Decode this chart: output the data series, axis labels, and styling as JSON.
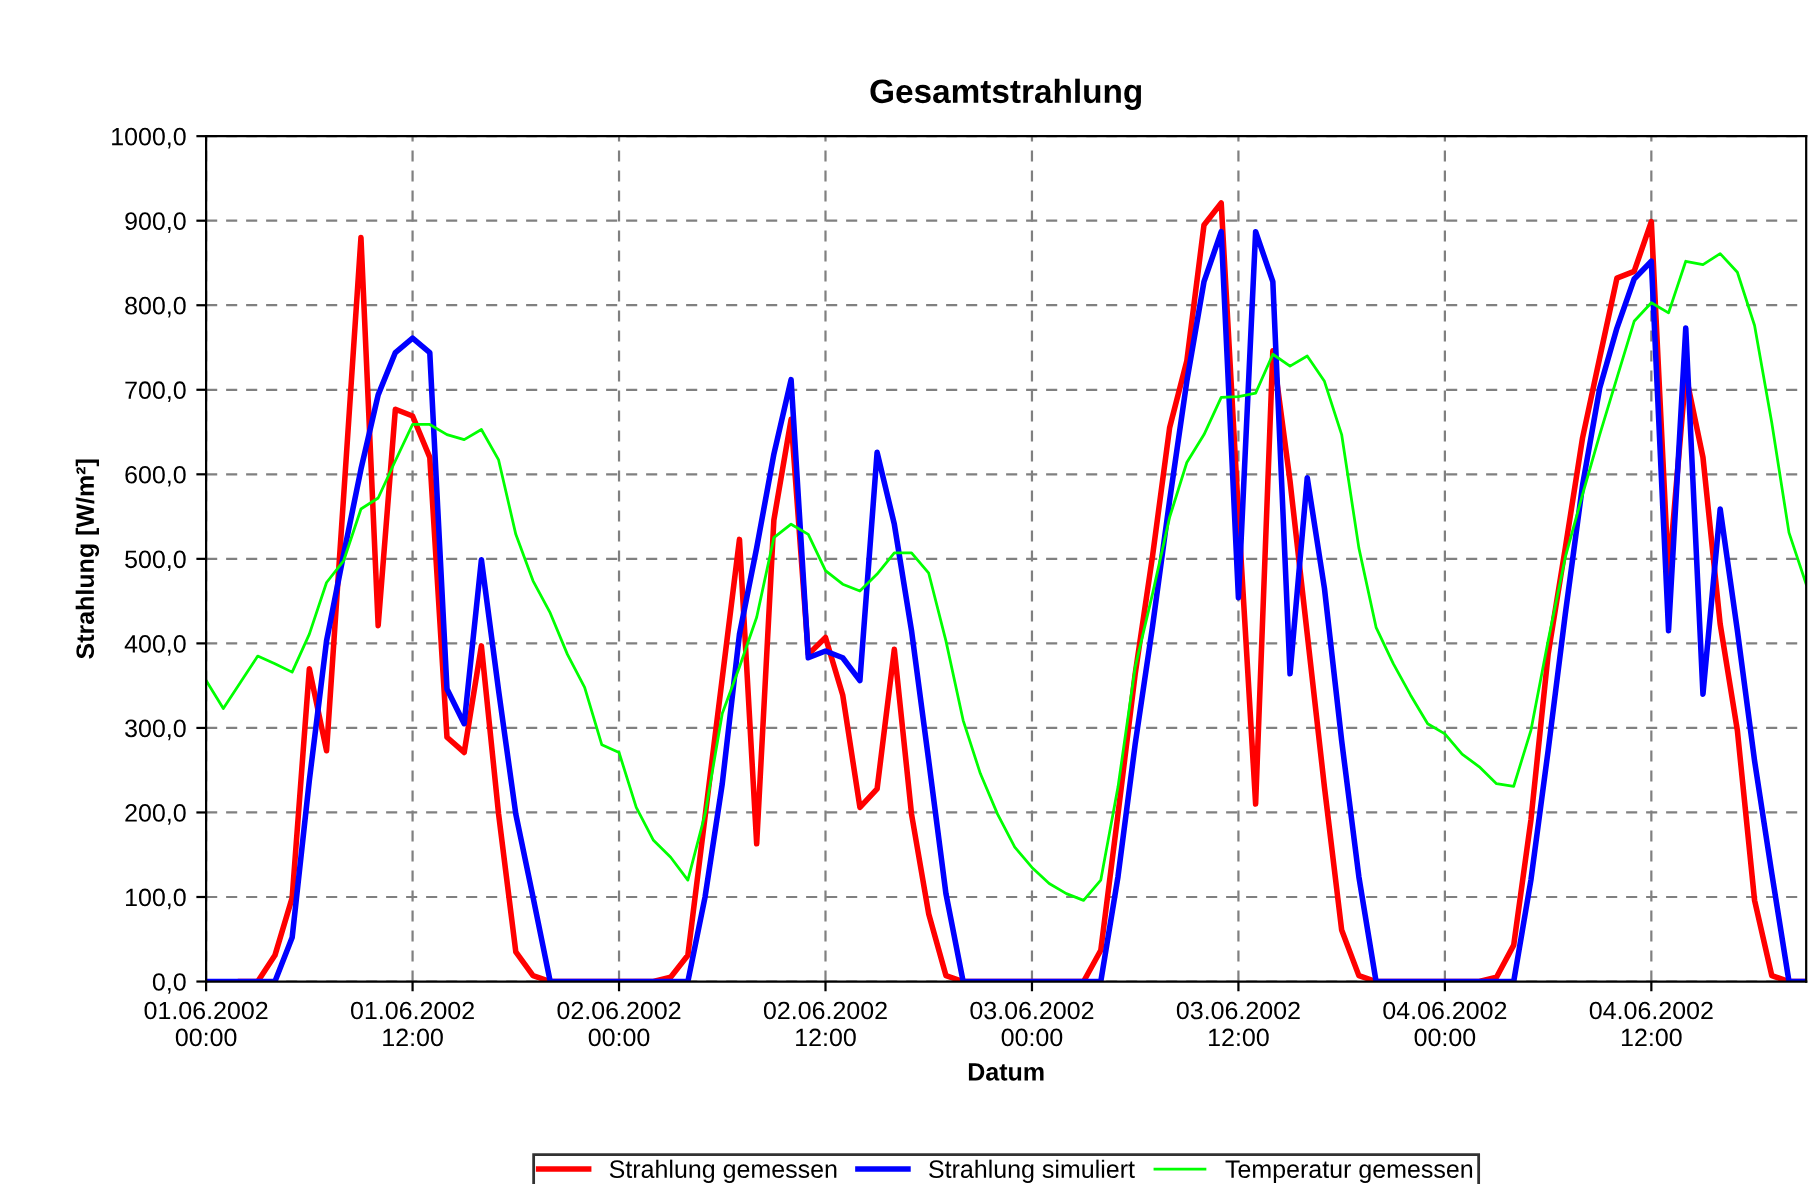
{
  "chart_data": {
    "type": "line",
    "title": "Gesamtstrahlung",
    "xlabel": "Datum",
    "ylabel": "Strahlung [W/m²]",
    "x": [
      "2002-06-01T00:00",
      "2002-06-01T01:00",
      "2002-06-01T02:00",
      "2002-06-01T03:00",
      "2002-06-01T04:00",
      "2002-06-01T05:00",
      "2002-06-01T06:00",
      "2002-06-01T07:00",
      "2002-06-01T08:00",
      "2002-06-01T09:00",
      "2002-06-01T10:00",
      "2002-06-01T11:00",
      "2002-06-01T12:00",
      "2002-06-01T13:00",
      "2002-06-01T14:00",
      "2002-06-01T15:00",
      "2002-06-01T16:00",
      "2002-06-01T17:00",
      "2002-06-01T18:00",
      "2002-06-01T19:00",
      "2002-06-01T20:00",
      "2002-06-01T21:00",
      "2002-06-01T22:00",
      "2002-06-01T23:00",
      "2002-06-02T00:00",
      "2002-06-02T01:00",
      "2002-06-02T02:00",
      "2002-06-02T03:00",
      "2002-06-02T04:00",
      "2002-06-02T05:00",
      "2002-06-02T06:00",
      "2002-06-02T07:00",
      "2002-06-02T08:00",
      "2002-06-02T09:00",
      "2002-06-02T10:00",
      "2002-06-02T11:00",
      "2002-06-02T12:00",
      "2002-06-02T13:00",
      "2002-06-02T14:00",
      "2002-06-02T15:00",
      "2002-06-02T16:00",
      "2002-06-02T17:00",
      "2002-06-02T18:00",
      "2002-06-02T19:00",
      "2002-06-02T20:00",
      "2002-06-02T21:00",
      "2002-06-02T22:00",
      "2002-06-02T23:00",
      "2002-06-03T00:00",
      "2002-06-03T01:00",
      "2002-06-03T02:00",
      "2002-06-03T03:00",
      "2002-06-03T04:00",
      "2002-06-03T05:00",
      "2002-06-03T06:00",
      "2002-06-03T07:00",
      "2002-06-03T08:00",
      "2002-06-03T09:00",
      "2002-06-03T10:00",
      "2002-06-03T11:00",
      "2002-06-03T12:00",
      "2002-06-03T13:00",
      "2002-06-03T14:00",
      "2002-06-03T15:00",
      "2002-06-03T16:00",
      "2002-06-03T17:00",
      "2002-06-03T18:00",
      "2002-06-03T19:00",
      "2002-06-03T20:00",
      "2002-06-03T21:00",
      "2002-06-03T22:00",
      "2002-06-03T23:00",
      "2002-06-04T00:00",
      "2002-06-04T01:00",
      "2002-06-04T02:00",
      "2002-06-04T03:00",
      "2002-06-04T04:00",
      "2002-06-04T05:00",
      "2002-06-04T06:00",
      "2002-06-04T07:00",
      "2002-06-04T08:00",
      "2002-06-04T09:00",
      "2002-06-04T10:00",
      "2002-06-04T11:00",
      "2002-06-04T12:00",
      "2002-06-04T13:00",
      "2002-06-04T14:00",
      "2002-06-04T15:00",
      "2002-06-04T16:00",
      "2002-06-04T17:00",
      "2002-06-04T18:00",
      "2002-06-04T19:00",
      "2002-06-04T20:00",
      "2002-06-04T21:00"
    ],
    "series": [
      {
        "name": "Strahlung gemessen",
        "color": "#ff0000",
        "values": [
          null,
          null,
          0,
          0,
          31,
          99,
          370,
          273,
          576,
          880,
          421,
          677,
          669,
          620,
          289,
          271,
          397,
          198,
          35,
          7,
          0,
          0,
          0,
          0,
          0,
          0,
          0,
          5,
          31,
          195,
          359,
          523,
          163,
          546,
          665,
          387,
          407,
          339,
          206,
          228,
          393,
          198,
          80,
          7,
          0,
          0,
          0,
          0,
          0,
          0,
          0,
          0,
          37,
          198,
          364,
          502,
          655,
          734,
          895,
          921,
          553,
          210,
          746,
          592,
          411,
          230,
          61,
          7,
          0,
          0,
          0,
          0,
          0,
          0,
          0,
          5,
          43,
          191,
          387,
          513,
          643,
          738,
          832,
          840,
          899,
          480,
          718,
          620,
          423,
          297,
          96,
          7,
          0,
          0
        ]
      },
      {
        "name": "Strahlung simuliert",
        "color": "#0000ff",
        "values": [
          0,
          0,
          0,
          0,
          0,
          52,
          238,
          403,
          506,
          606,
          694,
          744,
          761,
          744,
          346,
          305,
          499,
          344,
          198,
          100,
          0,
          0,
          0,
          0,
          0,
          0,
          0,
          0,
          0,
          100,
          234,
          411,
          513,
          624,
          712,
          383,
          391,
          383,
          356,
          626,
          541,
          415,
          261,
          104,
          0,
          0,
          0,
          0,
          0,
          0,
          0,
          0,
          0,
          124,
          281,
          419,
          569,
          710,
          828,
          887,
          454,
          887,
          828,
          364,
          596,
          465,
          285,
          124,
          0,
          0,
          0,
          0,
          0,
          0,
          0,
          0,
          0,
          120,
          273,
          435,
          587,
          702,
          773,
          831,
          852,
          415,
          773,
          340,
          559,
          415,
          261,
          128,
          0,
          0
        ]
      },
      {
        "name": "Temperatur gemessen",
        "color": "#00ff00",
        "values": [
          356,
          323,
          354,
          385,
          376,
          366,
          411,
          472,
          498,
          559,
          572,
          616,
          659,
          659,
          647,
          641,
          653,
          617,
          529,
          474,
          436,
          387,
          348,
          280,
          271,
          206,
          167,
          147,
          120,
          198,
          317,
          372,
          431,
          525,
          541,
          529,
          486,
          470,
          462,
          482,
          507,
          507,
          483,
          403,
          309,
          246,
          198,
          159,
          135,
          116,
          104,
          96,
          120,
          230,
          372,
          458,
          549,
          614,
          647,
          691,
          692,
          696,
          742,
          728,
          740,
          710,
          647,
          513,
          419,
          376,
          339,
          305,
          293,
          269,
          254,
          234,
          231,
          297,
          403,
          502,
          576,
          647,
          714,
          781,
          803,
          791,
          852,
          848,
          861,
          839,
          776,
          661,
          531,
          470
        ]
      }
    ],
    "xlim": [
      "2002-06-01T00:00",
      "2002-06-04T21:00"
    ],
    "xticks": [
      {
        "value": "2002-06-01T00:00",
        "label": "01.06.2002\n00:00"
      },
      {
        "value": "2002-06-01T12:00",
        "label": "01.06.2002\n12:00"
      },
      {
        "value": "2002-06-02T00:00",
        "label": "02.06.2002\n00:00"
      },
      {
        "value": "2002-06-02T12:00",
        "label": "02.06.2002\n12:00"
      },
      {
        "value": "2002-06-03T00:00",
        "label": "03.06.2002\n00:00"
      },
      {
        "value": "2002-06-03T12:00",
        "label": "03.06.2002\n12:00"
      },
      {
        "value": "2002-06-04T00:00",
        "label": "04.06.2002\n00:00"
      },
      {
        "value": "2002-06-04T12:00",
        "label": "04.06.2002\n12:00"
      }
    ],
    "ylim": [
      0,
      1000
    ],
    "yticks": [
      {
        "value": 0,
        "label": "0,0"
      },
      {
        "value": 100,
        "label": "100,0"
      },
      {
        "value": 200,
        "label": "200,0"
      },
      {
        "value": 300,
        "label": "300,0"
      },
      {
        "value": 400,
        "label": "400,0"
      },
      {
        "value": 500,
        "label": "500,0"
      },
      {
        "value": 600,
        "label": "600,0"
      },
      {
        "value": 700,
        "label": "700,0"
      },
      {
        "value": 800,
        "label": "800,0"
      },
      {
        "value": 900,
        "label": "900,0"
      },
      {
        "value": 1000,
        "label": "1000,0"
      }
    ],
    "grid": true,
    "legend": "bottom",
    "marker": "none",
    "line_style": "solid"
  }
}
